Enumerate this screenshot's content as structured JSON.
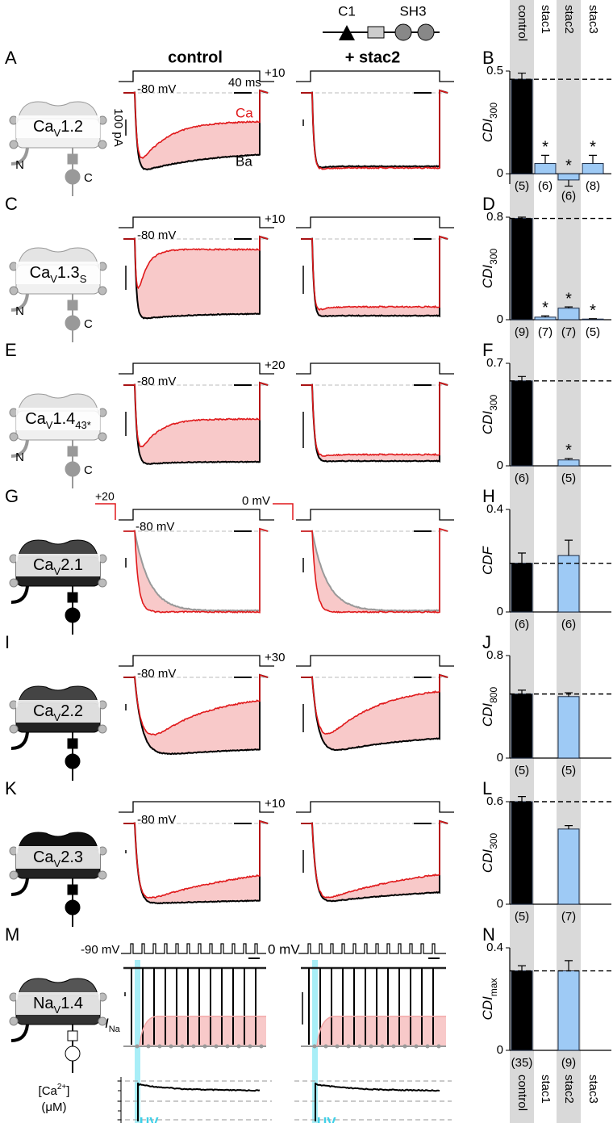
{
  "figure": {
    "domain_labels": {
      "c1": "C1",
      "sh3": "SH3"
    },
    "columns_top": [
      "control",
      "stac1",
      "stac2",
      "stac3"
    ],
    "trace_titles": [
      "control",
      "+ stac2"
    ],
    "rows": [
      {
        "letter": "A",
        "channel": {
          "pre": "Ca",
          "sub": "V",
          "post": "1.2"
        },
        "n_term": "N",
        "c_term": "C",
        "hold": "-80 mV",
        "step": "+10",
        "time_scale": "40 ms",
        "current_scale": "100 pA",
        "ca": "Ca",
        "ba": "Ba"
      },
      {
        "letter": "C",
        "channel": {
          "pre": "Ca",
          "sub": "V",
          "post": "1.3",
          "post_sub": "S"
        },
        "n_term": "N",
        "c_term": "C",
        "hold": "-80 mV",
        "step": "+10"
      },
      {
        "letter": "E",
        "channel": {
          "pre": "Ca",
          "sub": "V",
          "post": "1.4",
          "post_sub": "43*"
        },
        "n_term": "N",
        "c_term": "C",
        "hold": "-80 mV",
        "step": "+20"
      },
      {
        "letter": "G",
        "channel": {
          "pre": "Ca",
          "sub": "V",
          "post": "2.1"
        },
        "prepulse": "+20",
        "hold": "-80 mV",
        "step": "0 mV"
      },
      {
        "letter": "I",
        "channel": {
          "pre": "Ca",
          "sub": "V",
          "post": "2.2"
        },
        "hold": "-80 mV",
        "step": "+30"
      },
      {
        "letter": "K",
        "channel": {
          "pre": "Ca",
          "sub": "V",
          "post": "2.3"
        },
        "hold": "-80 mV",
        "step": "+10"
      },
      {
        "letter": "M",
        "channel": {
          "pre": "Na",
          "sub": "V",
          "post": "1.4"
        },
        "hold": "-90 mV",
        "step": "0 mV",
        "current": {
          "main": "I",
          "sub": "Na"
        },
        "calcium": {
          "pre": "[Ca",
          "sup": "2+",
          "post": "]"
        },
        "calcium_unit": "(μM)",
        "uv": [
          "UV",
          "UV"
        ]
      }
    ]
  },
  "chart_data": [
    {
      "type": "bar",
      "letter": "B",
      "ylabel": {
        "main": "CDI",
        "sub": "300"
      },
      "ylim": [
        -0.05,
        0.5
      ],
      "yticks": [
        0,
        0.5
      ],
      "values": [
        0.46,
        0.05,
        -0.03,
        0.05
      ],
      "errors": [
        0.03,
        0.04,
        0.03,
        0.04
      ],
      "stars": [
        null,
        "*",
        "*",
        "*"
      ],
      "n_labels": [
        "(5)",
        "(6)",
        "(6)",
        "(8)"
      ],
      "control_color": "#000000",
      "color": "#9ecaf5"
    },
    {
      "type": "bar",
      "letter": "D",
      "ylabel": {
        "main": "CDI",
        "sub": "300"
      },
      "ylim": [
        0,
        0.8
      ],
      "yticks": [
        0,
        0.8
      ],
      "values": [
        0.79,
        0.02,
        0.09,
        0.005
      ],
      "errors": [
        0.01,
        0.01,
        0.01,
        0.003
      ],
      "stars": [
        null,
        "*",
        "*",
        "*"
      ],
      "n_labels": [
        "(9)",
        "(7)",
        "(7)",
        "(5)"
      ],
      "control_color": "#000000",
      "color": "#9ecaf5"
    },
    {
      "type": "bar",
      "letter": "F",
      "ylabel": {
        "main": "CDI",
        "sub": "300"
      },
      "ylim": [
        0,
        0.7
      ],
      "yticks": [
        0,
        0.7
      ],
      "values": [
        0.58,
        null,
        0.04,
        null
      ],
      "errors": [
        0.03,
        null,
        0.01,
        null
      ],
      "stars": [
        null,
        null,
        "*",
        null
      ],
      "n_labels": [
        "(6)",
        null,
        "(5)",
        null
      ],
      "control_color": "#000000",
      "color": "#9ecaf5"
    },
    {
      "type": "bar",
      "letter": "H",
      "ylabel": {
        "main": "CDF"
      },
      "ylim": [
        0,
        0.4
      ],
      "yticks": [
        0,
        0.4
      ],
      "values": [
        0.19,
        null,
        0.22,
        null
      ],
      "errors": [
        0.04,
        null,
        0.06,
        null
      ],
      "stars": [
        null,
        null,
        null,
        null
      ],
      "n_labels": [
        "(6)",
        null,
        "(6)",
        null
      ],
      "control_color": "#000000",
      "color": "#9ecaf5"
    },
    {
      "type": "bar",
      "letter": "J",
      "ylabel": {
        "main": "CDI",
        "sub": "800"
      },
      "ylim": [
        0,
        0.8
      ],
      "yticks": [
        0,
        0.8
      ],
      "values": [
        0.5,
        null,
        0.48,
        null
      ],
      "errors": [
        0.03,
        null,
        0.03,
        null
      ],
      "stars": [
        null,
        null,
        null,
        null
      ],
      "n_labels": [
        "(5)",
        null,
        "(5)",
        null
      ],
      "control_color": "#000000",
      "color": "#9ecaf5"
    },
    {
      "type": "bar",
      "letter": "L",
      "ylabel": {
        "main": "CDI",
        "sub": "300"
      },
      "ylim": [
        0,
        0.6
      ],
      "yticks": [
        0,
        0.6
      ],
      "values": [
        0.6,
        null,
        0.44,
        null
      ],
      "errors": [
        0.03,
        null,
        0.02,
        null
      ],
      "stars": [
        null,
        null,
        null,
        null
      ],
      "n_labels": [
        "(5)",
        null,
        "(7)",
        null
      ],
      "control_color": "#000000",
      "color": "#9ecaf5"
    },
    {
      "type": "bar",
      "letter": "N",
      "ylabel": {
        "main": "CDI",
        "sub": "max"
      },
      "ylim": [
        0,
        0.4
      ],
      "yticks": [
        0,
        0.4
      ],
      "values": [
        0.31,
        null,
        0.31,
        null
      ],
      "errors": [
        0.02,
        null,
        0.04,
        null
      ],
      "stars": [
        null,
        null,
        null,
        null
      ],
      "n_labels": [
        "(35)",
        null,
        "(9)",
        null
      ],
      "categories": [
        "control",
        "stac1",
        "stac2",
        "stac3"
      ],
      "control_color": "#000000",
      "color": "#9ecaf5"
    }
  ]
}
